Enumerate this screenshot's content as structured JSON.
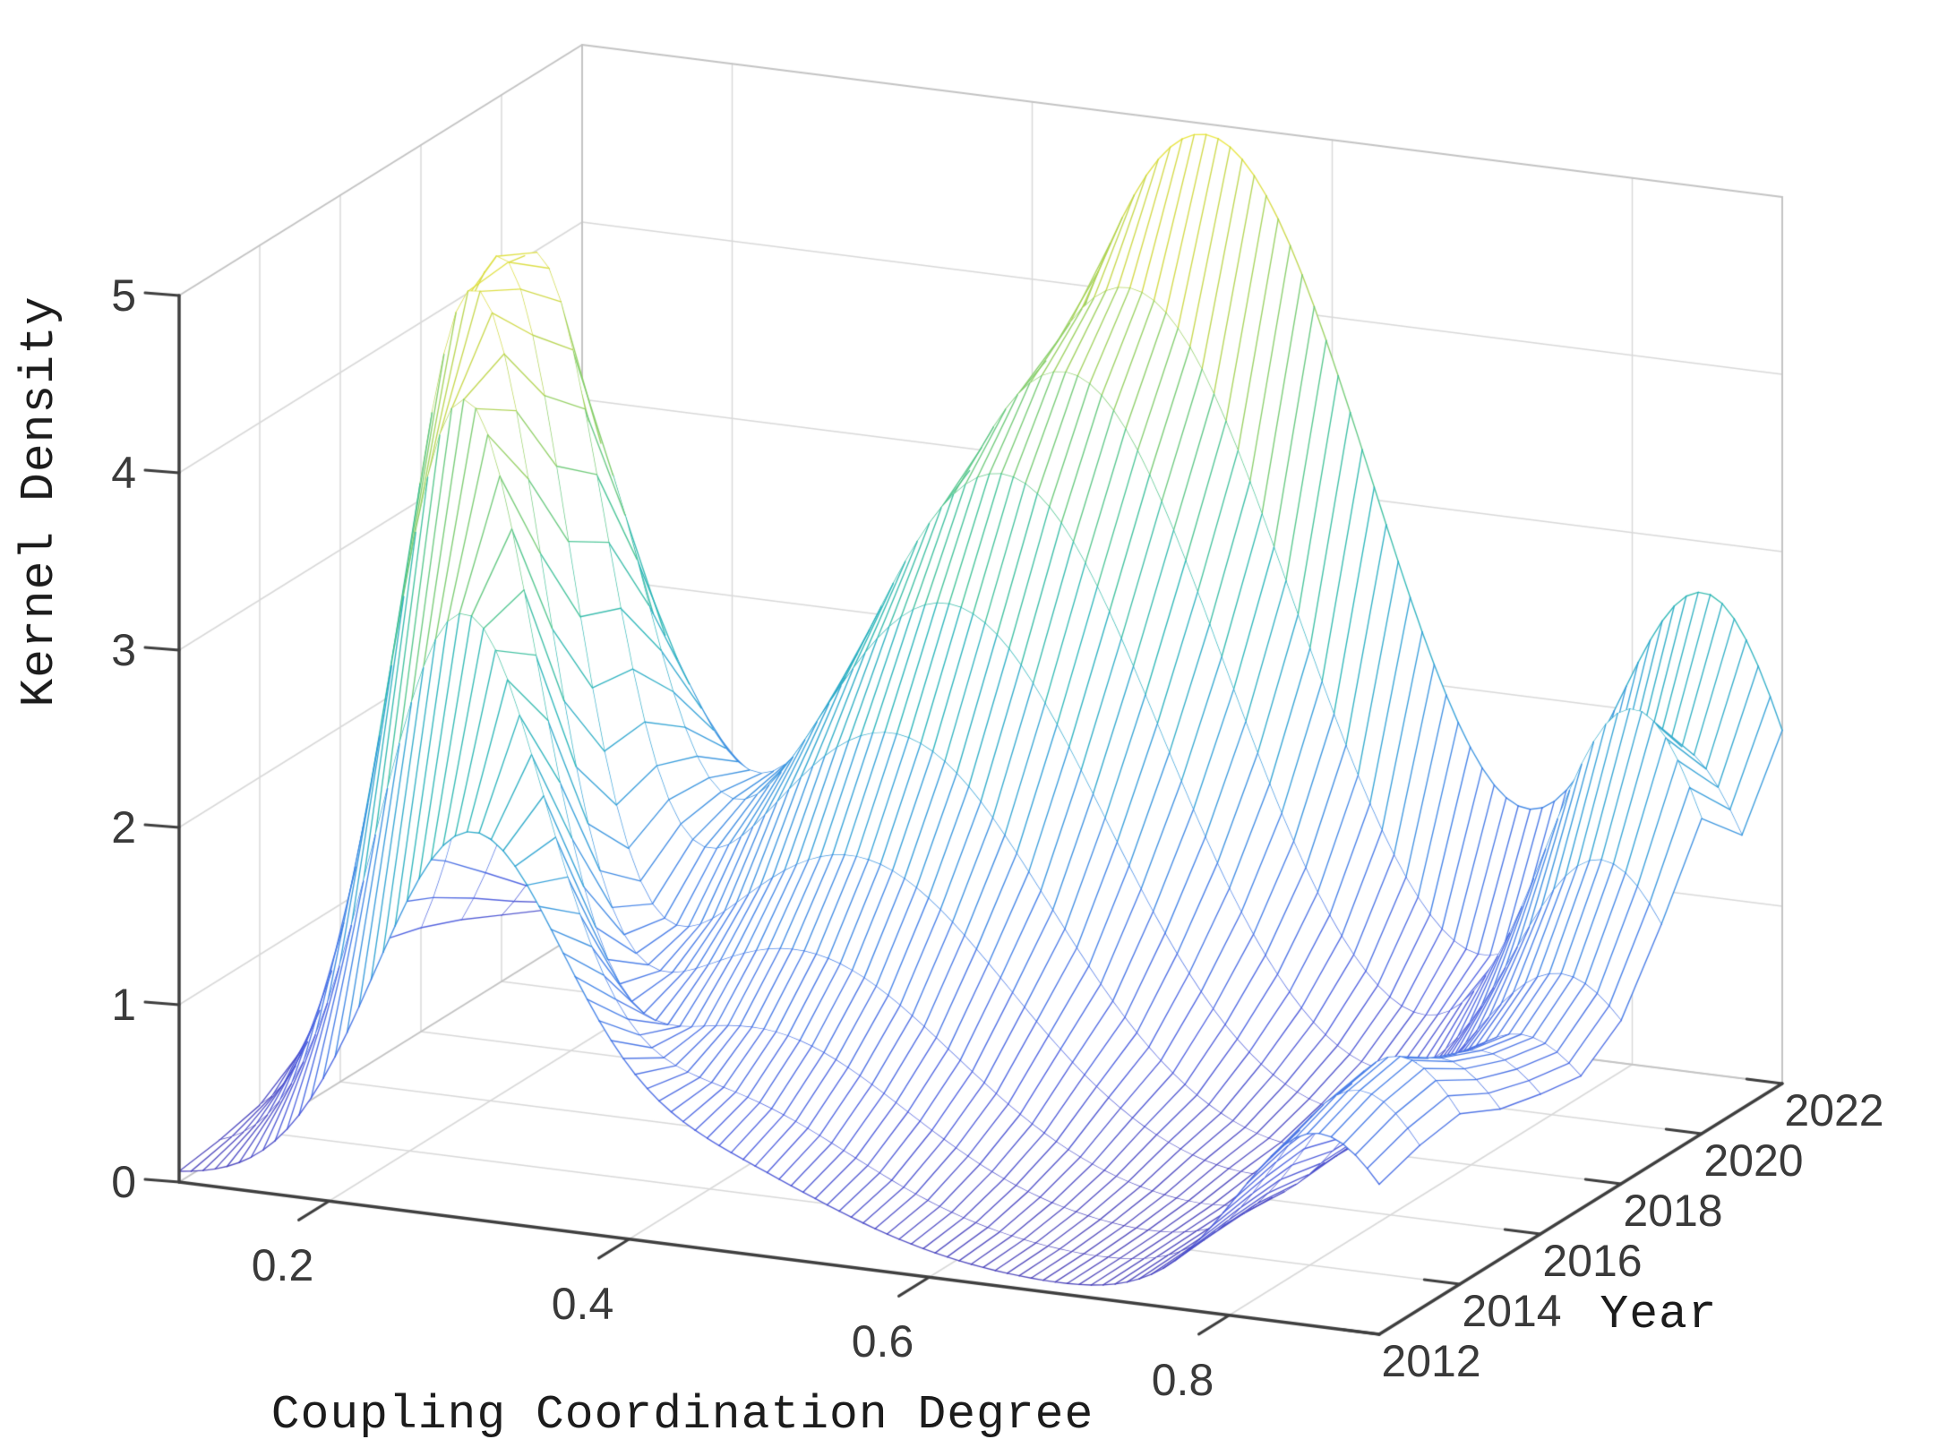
{
  "figure": {
    "kind": "matlab-style-3d-mesh-figure",
    "background": "#ffffff"
  },
  "chart_data": {
    "type": "surface",
    "title": "",
    "xlabel": "Coupling Coordination Degree",
    "ylabel": "Year",
    "zlabel": "Kernel Density",
    "x_range": [
      0.1,
      0.9
    ],
    "x_ticks": [
      "0.2",
      "0.4",
      "0.6",
      "0.8"
    ],
    "x_tick_values": [
      0.2,
      0.4,
      0.6,
      0.8
    ],
    "y_range": [
      2012,
      2022
    ],
    "y_ticks": [
      "2012",
      "2014",
      "2016",
      "2018",
      "2020",
      "2022"
    ],
    "y_tick_values": [
      2012,
      2014,
      2016,
      2018,
      2020,
      2022
    ],
    "z_range": [
      0,
      5
    ],
    "z_ticks": [
      "0",
      "1",
      "2",
      "3",
      "4",
      "5"
    ],
    "z_tick_values": [
      0,
      1,
      2,
      3,
      4,
      5
    ],
    "grid": true,
    "legend": false,
    "view": "matlab-default-3d",
    "colormap": {
      "name": "parula-like",
      "stops": [
        [
          0.0,
          "#4b3fb5"
        ],
        [
          0.12,
          "#4a5ce0"
        ],
        [
          0.25,
          "#3f7ee8"
        ],
        [
          0.38,
          "#2f9fd8"
        ],
        [
          0.5,
          "#25b4b8"
        ],
        [
          0.62,
          "#3fc295"
        ],
        [
          0.72,
          "#72ca70"
        ],
        [
          0.82,
          "#a8d254"
        ],
        [
          0.91,
          "#d5d93e"
        ],
        [
          1.0,
          "#efe93a"
        ]
      ]
    },
    "surface": {
      "description": "Kernel density of coupling coordination degree per year; each year slice is a mixture of gaussian peaks [amplitude, mean, sigma] over coupling degree.",
      "coupling_samples": 101,
      "baseline_density": 0.04,
      "peak_format": [
        "amplitude",
        "mean_coupling_degree",
        "sigma"
      ],
      "kernel_components_by_year": [
        {
          "year": 2012,
          "peaks": [
            [
              1.9,
              0.29,
              0.062
            ],
            [
              0.55,
              0.42,
              0.1
            ],
            [
              1.05,
              0.86,
              0.055
            ]
          ]
        },
        {
          "year": 2013,
          "peaks": [
            [
              3.0,
              0.26,
              0.056
            ],
            [
              0.7,
              0.42,
              0.1
            ],
            [
              1.15,
              0.86,
              0.055
            ]
          ]
        },
        {
          "year": 2014,
          "peaks": [
            [
              4.1,
              0.235,
              0.05
            ],
            [
              0.9,
              0.43,
              0.1
            ],
            [
              1.2,
              0.86,
              0.055
            ]
          ]
        },
        {
          "year": 2015,
          "peaks": [
            [
              4.55,
              0.215,
              0.048
            ],
            [
              1.2,
              0.43,
              0.105
            ],
            [
              1.05,
              0.86,
              0.055
            ]
          ]
        },
        {
          "year": 2016,
          "peaks": [
            [
              4.6,
              0.205,
              0.048
            ],
            [
              1.6,
              0.44,
              0.105
            ],
            [
              0.95,
              0.86,
              0.058
            ]
          ]
        },
        {
          "year": 2017,
          "peaks": [
            [
              4.45,
              0.2,
              0.05
            ],
            [
              2.15,
              0.44,
              0.105
            ],
            [
              0.9,
              0.86,
              0.058
            ]
          ]
        },
        {
          "year": 2018,
          "peaks": [
            [
              3.4,
              0.2,
              0.052
            ],
            [
              2.75,
              0.45,
              0.105
            ],
            [
              1.1,
              0.86,
              0.06
            ]
          ]
        },
        {
          "year": 2019,
          "peaks": [
            [
              2.3,
              0.2,
              0.055
            ],
            [
              3.35,
              0.46,
              0.105
            ],
            [
              1.6,
              0.86,
              0.06
            ]
          ]
        },
        {
          "year": 2020,
          "peaks": [
            [
              1.45,
              0.2,
              0.058
            ],
            [
              3.8,
              0.475,
              0.105
            ],
            [
              2.3,
              0.855,
              0.06
            ]
          ]
        },
        {
          "year": 2021,
          "peaks": [
            [
              0.85,
              0.2,
              0.06
            ],
            [
              4.15,
              0.49,
              0.11
            ],
            [
              1.95,
              0.855,
              0.062
            ]
          ]
        },
        {
          "year": 2022,
          "peaks": [
            [
              0.55,
              0.2,
              0.06
            ],
            [
              4.9,
              0.515,
              0.115
            ],
            [
              2.6,
              0.85,
              0.065
            ]
          ]
        }
      ]
    }
  },
  "colors": {
    "pane_grid": "#d9d9d9",
    "pane_edge": "#c4c4c4",
    "axis_line": "#3f3f3f",
    "tick_text": "#3a3a3a",
    "title_text": "#1c1c1c",
    "mesh_face_fill": "#ffffff"
  }
}
